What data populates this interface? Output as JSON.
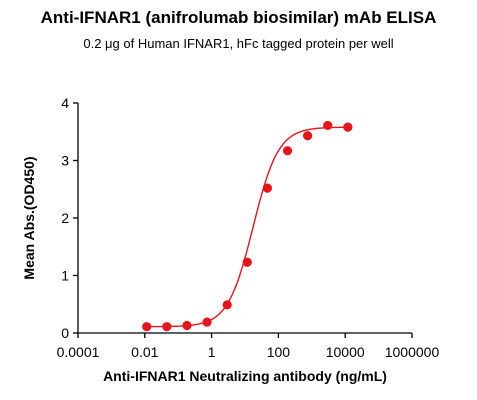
{
  "chart_data": {
    "type": "scatter",
    "title": "Anti-IFNAR1 (anifrolumab biosimilar) mAb ELISA",
    "subtitle": "0.2 μg of Human IFNAR1, hFc tagged protein per well",
    "xlabel": "Anti-IFNAR1 Neutralizing antibody (ng/mL)",
    "ylabel": "Mean Abs.(OD450)",
    "x_scale": "log",
    "xlim": [
      0.0001,
      1000000
    ],
    "ylim": [
      0,
      4
    ],
    "x_ticks": [
      {
        "value": 0.0001,
        "label": "0.0001"
      },
      {
        "value": 0.01,
        "label": "0.01"
      },
      {
        "value": 1,
        "label": "1"
      },
      {
        "value": 100,
        "label": "100"
      },
      {
        "value": 10000,
        "label": "10000"
      },
      {
        "value": 1000000,
        "label": "1000000"
      }
    ],
    "y_ticks": [
      {
        "value": 0,
        "label": "0"
      },
      {
        "value": 1,
        "label": "1"
      },
      {
        "value": 2,
        "label": "2"
      },
      {
        "value": 3,
        "label": "3"
      },
      {
        "value": 4,
        "label": "4"
      }
    ],
    "grid": false,
    "legend": "none",
    "color": "#e8141b",
    "series": [
      {
        "x": [
          0.0114,
          0.0457,
          0.183,
          0.732,
          2.93,
          11.7,
          46.9,
          188,
          750,
          3000,
          12000
        ],
        "y": [
          0.11,
          0.11,
          0.13,
          0.19,
          0.49,
          1.23,
          2.52,
          3.17,
          3.43,
          3.61,
          3.58
        ]
      }
    ],
    "fit": {
      "model": "4PL",
      "bottom": 0.11,
      "top": 3.58,
      "ec50": 17.5,
      "hill": 1.15,
      "x_range": [
        0.0114,
        12000
      ]
    }
  }
}
